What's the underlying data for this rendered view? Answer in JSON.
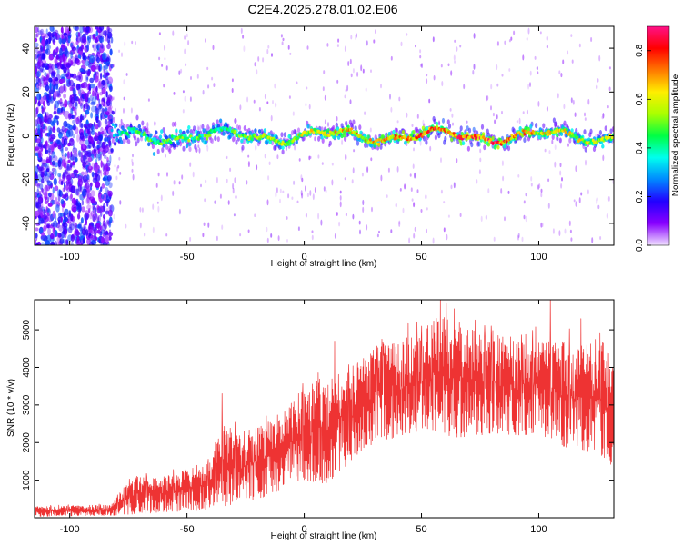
{
  "title": "C2E4.2025.278.01.02.E06",
  "chart_data": [
    {
      "type": "heatmap",
      "title": "C2E4.2025.278.01.02.E06",
      "xlabel": "Height of straight line (km)",
      "ylabel": "Frequency (Hz)",
      "xlim": [
        -115,
        132
      ],
      "ylim": [
        -50,
        50
      ],
      "x_ticks": [
        -100,
        -50,
        0,
        50,
        100
      ],
      "y_ticks": [
        -40,
        -20,
        0,
        20,
        40
      ],
      "colorbar": {
        "label": "Normalized spectral amplitude",
        "range": [
          0.0,
          0.9
        ],
        "ticks": [
          "0.0",
          "0.2",
          "0.4",
          "0.6",
          "0.8"
        ],
        "tick_values": [
          0.0,
          0.2,
          0.4,
          0.6,
          0.8
        ],
        "colors": [
          "#f0e0ff",
          "#8800ff",
          "#2200ff",
          "#0088ff",
          "#00ffee",
          "#00ff44",
          "#aaff00",
          "#ffee00",
          "#ff7700",
          "#ff0000",
          "#ff1188"
        ]
      },
      "band_center_hz": 0,
      "band_profile": [
        {
          "x": -115,
          "amplitude": 0.15,
          "halfwidth_hz": 50
        },
        {
          "x": -85,
          "amplitude": 0.18,
          "halfwidth_hz": 40
        },
        {
          "x": -80,
          "amplitude": 0.35,
          "halfwidth_hz": 6
        },
        {
          "x": -65,
          "amplitude": 0.45,
          "halfwidth_hz": 7
        },
        {
          "x": -35,
          "amplitude": 0.45,
          "halfwidth_hz": 5
        },
        {
          "x": 0,
          "amplitude": 0.55,
          "halfwidth_hz": 4
        },
        {
          "x": 50,
          "amplitude": 0.7,
          "halfwidth_hz": 4
        },
        {
          "x": 80,
          "amplitude": 0.75,
          "halfwidth_hz": 4
        },
        {
          "x": 100,
          "amplitude": 0.6,
          "halfwidth_hz": 4
        },
        {
          "x": 132,
          "amplitude": 0.5,
          "halfwidth_hz": 5
        }
      ]
    },
    {
      "type": "line",
      "xlabel": "Height of straight line (km)",
      "ylabel": "SNR (10 * v/v)",
      "xlim": [
        -115,
        132
      ],
      "ylim": [
        0,
        5800
      ],
      "x_ticks": [
        -100,
        -50,
        0,
        50,
        100
      ],
      "y_ticks": [
        1000,
        2000,
        3000,
        4000,
        5000
      ],
      "series": [
        {
          "name": "SNR",
          "color": "#ee3333",
          "envelope": [
            {
              "x": -115,
              "low": 30,
              "high": 300
            },
            {
              "x": -82,
              "low": 60,
              "high": 350
            },
            {
              "x": -78,
              "low": 80,
              "high": 750
            },
            {
              "x": -70,
              "low": 100,
              "high": 1200
            },
            {
              "x": -60,
              "low": 150,
              "high": 1100
            },
            {
              "x": -40,
              "low": 200,
              "high": 1500
            },
            {
              "x": -35,
              "low": 300,
              "high": 2500
            },
            {
              "x": -25,
              "low": 400,
              "high": 2300
            },
            {
              "x": -10,
              "low": 700,
              "high": 2700
            },
            {
              "x": 0,
              "low": 1000,
              "high": 3500
            },
            {
              "x": 10,
              "low": 900,
              "high": 3800
            },
            {
              "x": 20,
              "low": 1500,
              "high": 4000
            },
            {
              "x": 30,
              "low": 2000,
              "high": 4500
            },
            {
              "x": 50,
              "low": 2300,
              "high": 5000
            },
            {
              "x": 60,
              "low": 2100,
              "high": 5500
            },
            {
              "x": 75,
              "low": 2200,
              "high": 4900
            },
            {
              "x": 100,
              "low": 2200,
              "high": 4800
            },
            {
              "x": 110,
              "low": 1900,
              "high": 4700
            },
            {
              "x": 125,
              "low": 1700,
              "high": 4800
            },
            {
              "x": 132,
              "low": 1300,
              "high": 4600
            }
          ],
          "peaks": [
            {
              "x": -35,
              "value": 3300
            },
            {
              "x": 13,
              "value": 4700
            },
            {
              "x": 58,
              "value": 5800
            },
            {
              "x": 105,
              "value": 5800
            },
            {
              "x": 118,
              "value": 5300
            }
          ]
        }
      ]
    }
  ]
}
